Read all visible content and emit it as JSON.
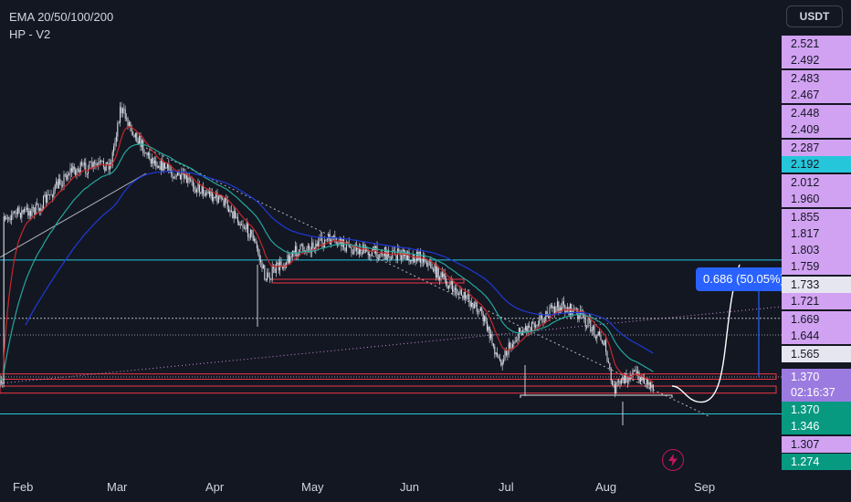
{
  "legend": {
    "line1": "EMA 20/50/100/200",
    "line2": "HP - V2"
  },
  "currency_button": "USDT",
  "price_labels": [
    {
      "text": "2.521",
      "style": "purple"
    },
    {
      "text": "2.492",
      "style": "purple"
    },
    {
      "text": "2.483",
      "style": "purple"
    },
    {
      "text": "2.467",
      "style": "purple"
    },
    {
      "text": "2.448",
      "style": "purple"
    },
    {
      "text": "2.409",
      "style": "purple"
    },
    {
      "text": "2.287",
      "style": "purple"
    },
    {
      "text": "2.192",
      "style": "teal"
    },
    {
      "text": "2.012",
      "style": "purple"
    },
    {
      "text": "1.960",
      "style": "purple"
    },
    {
      "text": "1.855",
      "style": "purple"
    },
    {
      "text": "1.817",
      "style": "purple"
    },
    {
      "text": "1.803",
      "style": "purple"
    },
    {
      "text": "1.759",
      "style": "purple"
    },
    {
      "text": "1.733",
      "style": "white"
    },
    {
      "text": "1.721",
      "style": "purple"
    },
    {
      "text": "1.669",
      "style": "purple"
    },
    {
      "text": "1.644",
      "style": "purple"
    },
    {
      "text": "1.565",
      "style": "white"
    },
    {
      "text": "1.370",
      "style": "green"
    },
    {
      "text": "1.346",
      "style": "green"
    },
    {
      "text": "1.307",
      "style": "purple"
    },
    {
      "text": "1.274",
      "style": "green"
    }
  ],
  "current_price": {
    "price": "1.370",
    "countdown": "02:16:37"
  },
  "measure": {
    "label": "0.686 (50.05%)"
  },
  "colors": {
    "background": "#131722",
    "up_candle": "#e0e3eb",
    "ema20": "#c62828",
    "ema50": "#26a69a",
    "ema100": "#1e3ad6",
    "level_line": "#26c6da",
    "zone_red": "#f23645",
    "measure_blue": "#2962ff",
    "bolt": "#c2185b"
  },
  "icons": {
    "alert": "lightning-bolt-icon"
  },
  "chart_data": {
    "type": "candlestick",
    "title": "",
    "xlabel": "",
    "ylabel": "",
    "x_ticks": [
      "Feb",
      "Mar",
      "Apr",
      "May",
      "Jun",
      "Jul",
      "Aug",
      "Sep"
    ],
    "ylim": [
      1.25,
      2.55
    ],
    "price_path": {
      "dates": [
        "Jan 25",
        "Feb 5",
        "Feb 15",
        "Feb 28",
        "Mar 3",
        "Mar 12",
        "Mar 22",
        "Apr 5",
        "Apr 14",
        "Apr 18",
        "Apr 28",
        "May 8",
        "May 18",
        "May 28",
        "Jun 7",
        "Jun 15",
        "Jun 25",
        "Jul 1",
        "Jul 8",
        "Jul 20",
        "Jul 26",
        "Aug 3",
        "Aug 6",
        "Aug 12",
        "Aug 19"
      ],
      "close": [
        1.86,
        1.88,
        1.99,
        2.01,
        2.17,
        2.03,
        1.97,
        1.9,
        1.8,
        1.68,
        1.76,
        1.79,
        1.76,
        1.75,
        1.74,
        1.66,
        1.59,
        1.44,
        1.53,
        1.6,
        1.58,
        1.5,
        1.36,
        1.41,
        1.37
      ]
    },
    "levels": [
      1.733,
      1.565,
      1.29
    ],
    "zones": [
      [
        1.395,
        1.405
      ],
      [
        1.355,
        1.37
      ]
    ],
    "projection": {
      "start": 1.37,
      "low": 1.35,
      "target": 1.72
    },
    "series": [
      {
        "name": "EMA 20"
      },
      {
        "name": "EMA 50"
      },
      {
        "name": "EMA 100"
      }
    ],
    "legend_placement": "top-left"
  }
}
